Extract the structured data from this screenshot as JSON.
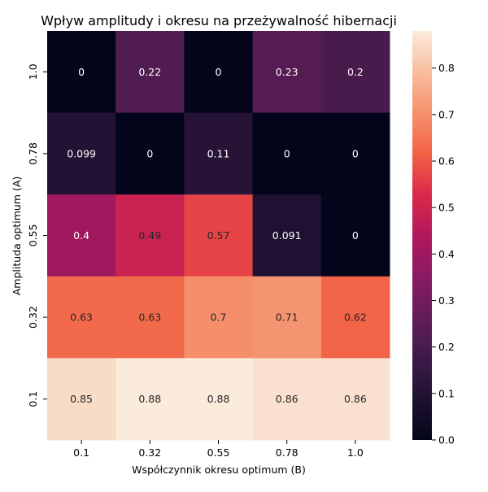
{
  "chart_data": {
    "type": "heatmap",
    "title": "Wpływ amplitudy i okresu na przeżywalność hibernacji",
    "xlabel": "Współczynnik okresu optimum (B)",
    "ylabel": "Amplituda optimum (A)",
    "x_categories": [
      "0.1",
      "0.32",
      "0.55",
      "0.78",
      "1.0"
    ],
    "y_categories": [
      "1.0",
      "0.78",
      "0.55",
      "0.32",
      "0.1"
    ],
    "values": [
      [
        0,
        0.22,
        0,
        0.23,
        0.2
      ],
      [
        0.099,
        0,
        0.11,
        0,
        0
      ],
      [
        0.4,
        0.49,
        0.57,
        0.091,
        0
      ],
      [
        0.63,
        0.63,
        0.7,
        0.71,
        0.62
      ],
      [
        0.85,
        0.88,
        0.88,
        0.86,
        0.86
      ]
    ],
    "cell_labels": [
      [
        "0",
        "0.22",
        "0",
        "0.23",
        "0.2"
      ],
      [
        "0.099",
        "0",
        "0.11",
        "0",
        "0"
      ],
      [
        "0.4",
        "0.49",
        "0.57",
        "0.091",
        "0"
      ],
      [
        "0.63",
        "0.63",
        "0.7",
        "0.71",
        "0.62"
      ],
      [
        "0.85",
        "0.88",
        "0.88",
        "0.86",
        "0.86"
      ]
    ],
    "colorbar": {
      "min": 0,
      "max": 0.88,
      "ticks": [
        "0.0",
        "0.1",
        "0.2",
        "0.3",
        "0.4",
        "0.5",
        "0.6",
        "0.7",
        "0.8"
      ],
      "colormap": "rocket"
    }
  }
}
